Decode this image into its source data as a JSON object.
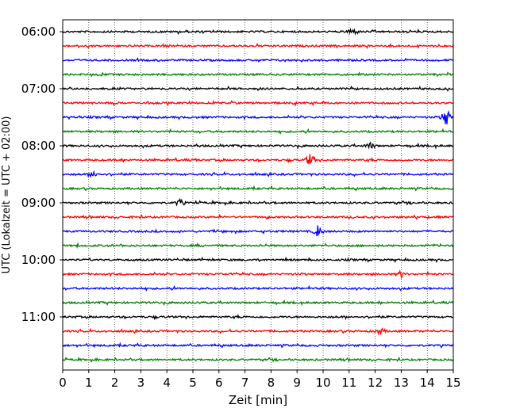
{
  "chart_data": {
    "type": "line",
    "subtype": "helicorder-seismogram",
    "xlabel": "Zeit  [min]",
    "ylabel": "UTC (Lokalzeit = UTC + 02:00)",
    "xlim": [
      0,
      15
    ],
    "x_ticks": [
      "0",
      "1",
      "2",
      "3",
      "4",
      "5",
      "6",
      "7",
      "8",
      "9",
      "10",
      "11",
      "12",
      "13",
      "14",
      "15"
    ],
    "y_ticks": [
      "06:00",
      "07:00",
      "08:00",
      "09:00",
      "10:00",
      "11:00"
    ],
    "row_interval_minutes": 15,
    "start_time": "06:00",
    "trace_count": 24,
    "color_cycle": [
      "#000000",
      "#ff0000",
      "#0000ff",
      "#008000"
    ],
    "vertical_grid": "dotted at each minute",
    "events": [
      {
        "row": 0,
        "minute": 11.1,
        "amplitude": "small"
      },
      {
        "row": 6,
        "minute": 14.7,
        "amplitude": "large"
      },
      {
        "row": 8,
        "minute": 11.8,
        "amplitude": "small"
      },
      {
        "row": 9,
        "minute": 9.5,
        "amplitude": "medium"
      },
      {
        "row": 10,
        "minute": 1.2,
        "amplitude": "small"
      },
      {
        "row": 12,
        "minute": 4.5,
        "amplitude": "small"
      },
      {
        "row": 14,
        "minute": 9.8,
        "amplitude": "medium"
      },
      {
        "row": 17,
        "minute": 13.0,
        "amplitude": "small"
      },
      {
        "row": 21,
        "minute": 12.2,
        "amplitude": "small"
      }
    ]
  }
}
